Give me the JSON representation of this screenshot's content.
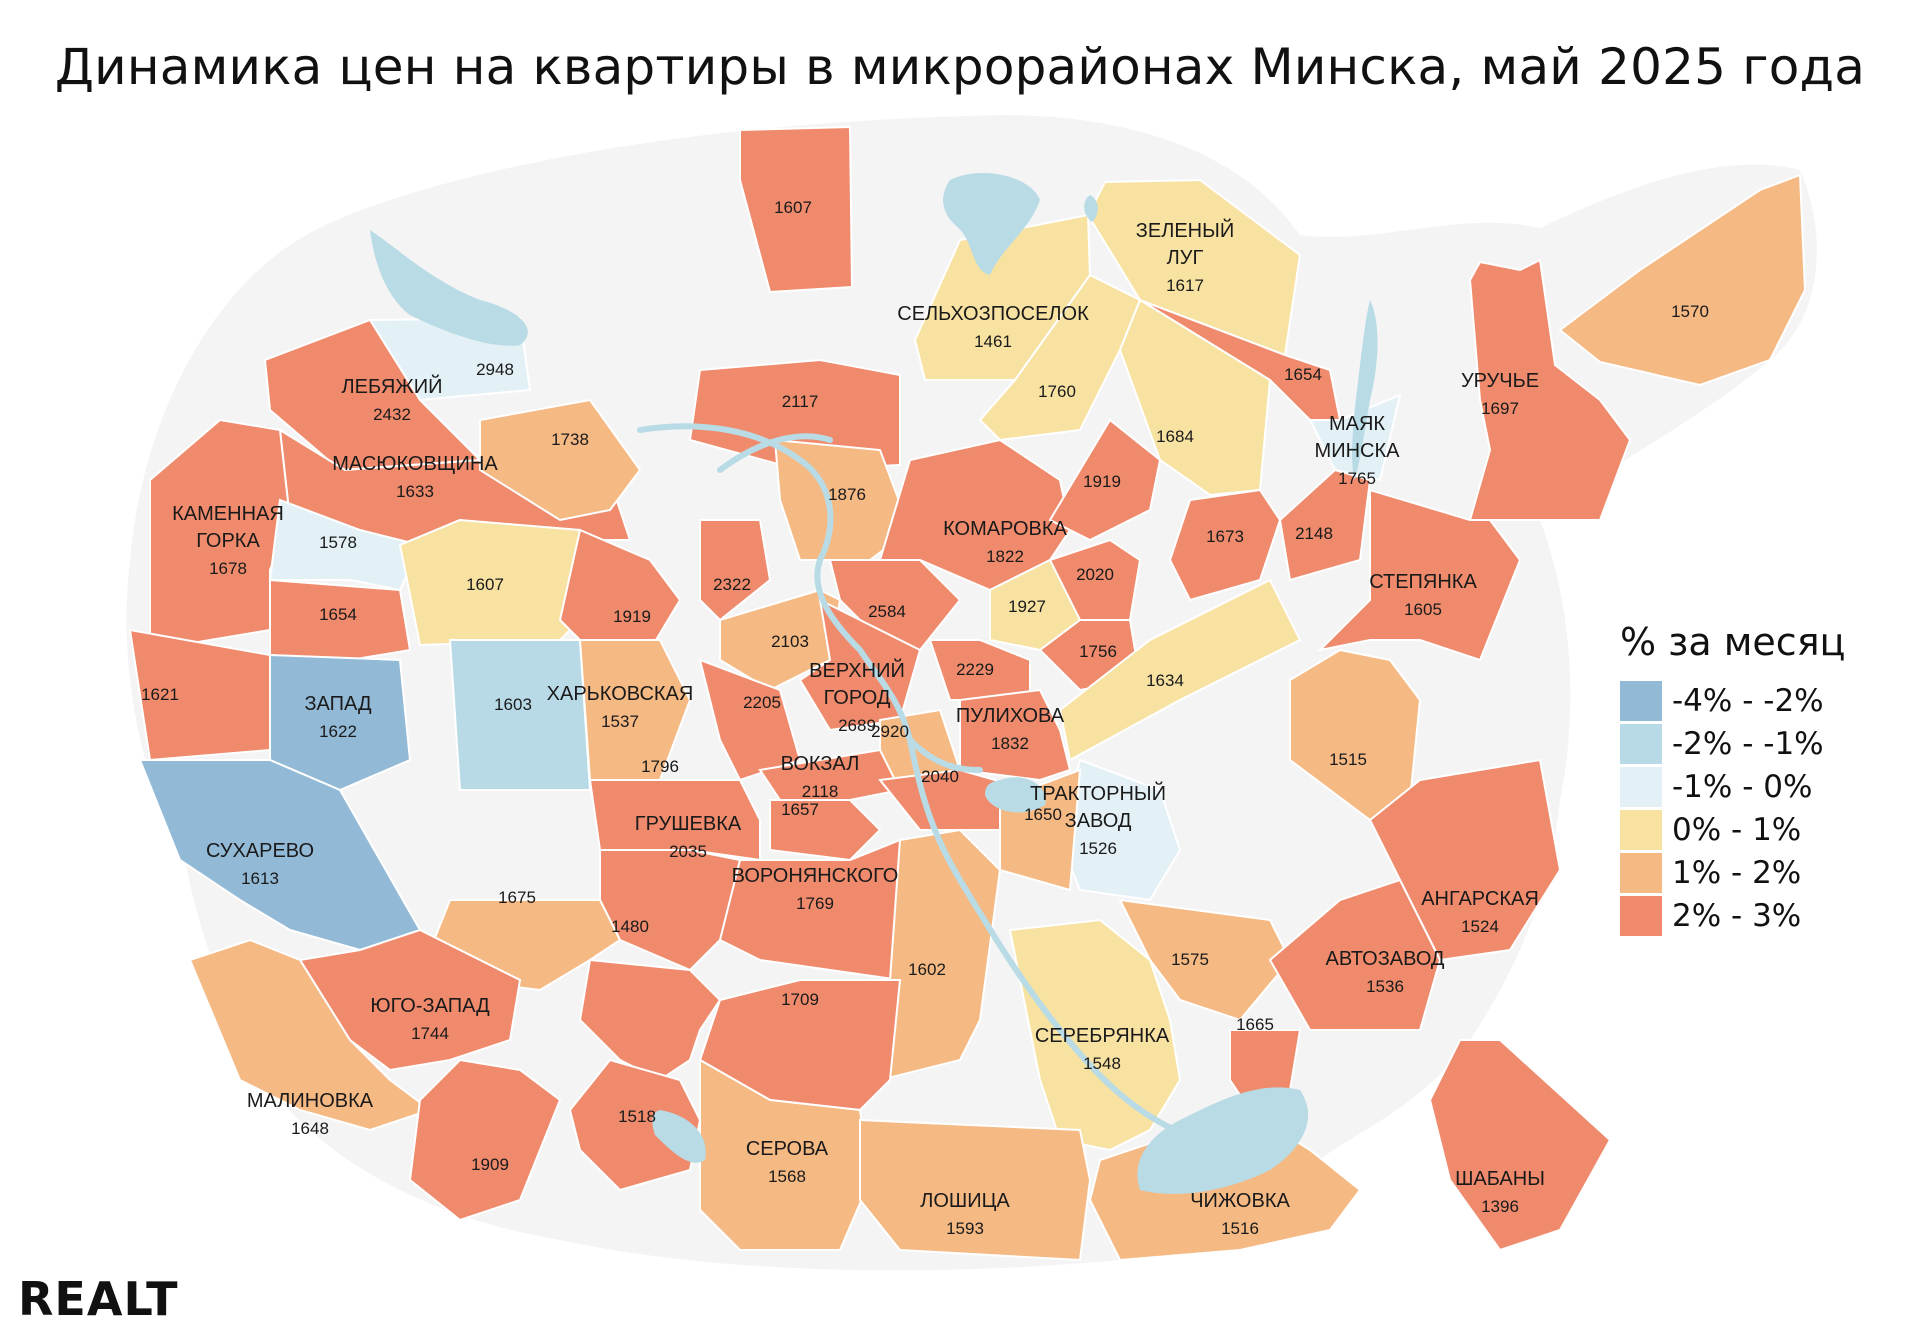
{
  "title": "Динамика цен на квартиры в микрорайонах Минска, май 2025 года",
  "legend": {
    "title": "% за месяц",
    "items": [
      {
        "label": "-4% - -2%",
        "color": "#92b9d6"
      },
      {
        "label": "-2% - -1%",
        "color": "#b8d9e6"
      },
      {
        "label": "-1% - 0%",
        "color": "#e3f1f6"
      },
      {
        "label": "0% - 1%",
        "color": "#f8e2a2"
      },
      {
        "label": "1% - 2%",
        "color": "#f5b984"
      },
      {
        "label": "2% - 3%",
        "color": "#ef8b6c"
      }
    ]
  },
  "map_colors": {
    "outside": "#ffffff",
    "city_base": "#f4f4f4",
    "water": "#b8dbe6",
    "border": "#ffffff"
  },
  "districts": [
    {
      "name": "",
      "value": "1607",
      "cls": 5
    },
    {
      "name": "",
      "value": "2948",
      "cls": 2
    },
    {
      "name": "ЛЕБЯЖИЙ",
      "value": "2432",
      "cls": 5
    },
    {
      "name": "",
      "value": "2117",
      "cls": 5
    },
    {
      "name": "СЕЛЬХОЗПОСЕЛОК",
      "value": "1461",
      "cls": 3
    },
    {
      "name": "ЗЕЛЕНЫЙ ЛУГ",
      "value": "1617",
      "cls": 3
    },
    {
      "name": "",
      "value": "1570",
      "cls": 4
    },
    {
      "name": "УРУЧЬЕ",
      "value": "1697",
      "cls": 5
    },
    {
      "name": "",
      "value": "1654",
      "cls": 5
    },
    {
      "name": "МАЯК МИНСКА",
      "value": "1765",
      "cls": 2
    },
    {
      "name": "",
      "value": "1760",
      "cls": 3
    },
    {
      "name": "",
      "value": "1684",
      "cls": 3
    },
    {
      "name": "МАСЮКОВЩИНА",
      "value": "1633",
      "cls": 5
    },
    {
      "name": "",
      "value": "1738",
      "cls": 4
    },
    {
      "name": "КАМЕННАЯ ГОРКА",
      "value": "1678",
      "cls": 5
    },
    {
      "name": "",
      "value": "1876",
      "cls": 4
    },
    {
      "name": "КОМАРОВКА",
      "value": "1822",
      "cls": 5
    },
    {
      "name": "",
      "value": "1919",
      "cls": 5
    },
    {
      "name": "",
      "value": "1673",
      "cls": 5
    },
    {
      "name": "",
      "value": "2148",
      "cls": 5
    },
    {
      "name": "СТЕПЯНКА",
      "value": "1605",
      "cls": 5
    },
    {
      "name": "",
      "value": "1578",
      "cls": 2
    },
    {
      "name": "",
      "value": "1607",
      "cls": 3
    },
    {
      "name": "",
      "value": "2322",
      "cls": 5
    },
    {
      "name": "",
      "value": "2584",
      "cls": 5
    },
    {
      "name": "",
      "value": "1927",
      "cls": 3
    },
    {
      "name": "",
      "value": "2020",
      "cls": 5
    },
    {
      "name": "",
      "value": "1654",
      "cls": 5
    },
    {
      "name": "",
      "value": "1919",
      "cls": 5
    },
    {
      "name": "",
      "value": "2103",
      "cls": 4
    },
    {
      "name": "ВЕРХНИЙ ГОРОД",
      "value": "2689",
      "cls": 5
    },
    {
      "name": "",
      "value": "1756",
      "cls": 5
    },
    {
      "name": "",
      "value": "2229",
      "cls": 5
    },
    {
      "name": "",
      "value": "1634",
      "cls": 3
    },
    {
      "name": "",
      "value": "1621",
      "cls": 5
    },
    {
      "name": "ЗАПАД",
      "value": "1622",
      "cls": 0
    },
    {
      "name": "",
      "value": "1603",
      "cls": 1
    },
    {
      "name": "ХАРЬКОВСКАЯ",
      "value": "1537",
      "cls": 4
    },
    {
      "name": "",
      "value": "2205",
      "cls": 5
    },
    {
      "name": "ПУЛИХОВА",
      "value": "1832",
      "cls": 5
    },
    {
      "name": "",
      "value": "2920",
      "cls": 4
    },
    {
      "name": "ВОКЗАЛ",
      "value": "2118",
      "cls": 5
    },
    {
      "name": "",
      "value": "1796",
      "cls": 5
    },
    {
      "name": "",
      "value": "2040",
      "cls": 5
    },
    {
      "name": "ТРАКТОРНЫЙ ЗАВОД",
      "value": "1526",
      "cls": 2
    },
    {
      "name": "",
      "value": "1650",
      "cls": 4
    },
    {
      "name": "",
      "value": "1515",
      "cls": 4
    },
    {
      "name": "СУХАРЕВО",
      "value": "1613",
      "cls": 0
    },
    {
      "name": "ГРУШЕВКА",
      "value": "2035",
      "cls": 5
    },
    {
      "name": "",
      "value": "1657",
      "cls": 5
    },
    {
      "name": "ВОРОНЯНСКОГО",
      "value": "1769",
      "cls": 5
    },
    {
      "name": "",
      "value": "1675",
      "cls": 4
    },
    {
      "name": "АНГАРСКАЯ",
      "value": "1524",
      "cls": 5
    },
    {
      "name": "",
      "value": "1480",
      "cls": 5
    },
    {
      "name": "",
      "value": "1575",
      "cls": 4
    },
    {
      "name": "АВТОЗАВОД",
      "value": "1536",
      "cls": 5
    },
    {
      "name": "",
      "value": "1602",
      "cls": 4
    },
    {
      "name": "ЮГО-ЗАПАД",
      "value": "1744",
      "cls": 5
    },
    {
      "name": "",
      "value": "1709",
      "cls": 5
    },
    {
      "name": "СЕРЕБРЯНКА",
      "value": "1548",
      "cls": 3
    },
    {
      "name": "",
      "value": "1665",
      "cls": 5
    },
    {
      "name": "МАЛИНОВКА",
      "value": "1648",
      "cls": 4
    },
    {
      "name": "",
      "value": "1518",
      "cls": 5
    },
    {
      "name": "СЕРОВА",
      "value": "1568",
      "cls": 4
    },
    {
      "name": "ШАБАНЫ",
      "value": "1396",
      "cls": 5
    },
    {
      "name": "",
      "value": "1909",
      "cls": 5
    },
    {
      "name": "ЛОШИЦА",
      "value": "1593",
      "cls": 4
    },
    {
      "name": "ЧИЖОВКА",
      "value": "1516",
      "cls": 4
    }
  ],
  "logo": {
    "text": "REALT"
  }
}
